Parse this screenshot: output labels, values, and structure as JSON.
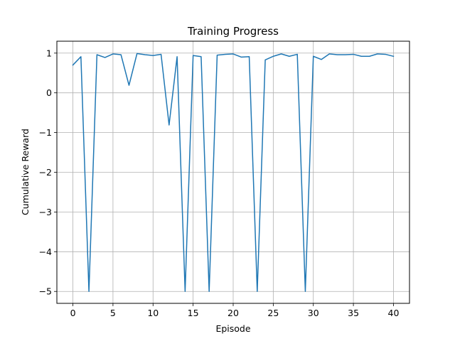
{
  "chart_data": {
    "type": "line",
    "title": "Training Progress",
    "xlabel": "Episode",
    "ylabel": "Cumulative Reward",
    "xlim": [
      -2,
      42
    ],
    "ylim": [
      -5.3,
      1.3
    ],
    "grid": true,
    "legend": "none",
    "colors": {
      "series": "#1f77b4",
      "grid": "#b0b0b0",
      "axis": "#000000"
    },
    "x_ticks": [
      0,
      5,
      10,
      15,
      20,
      25,
      30,
      35,
      40
    ],
    "y_ticks": [
      1,
      0,
      -1,
      -2,
      -3,
      -4,
      -5
    ],
    "x_tick_labels": [
      "0",
      "5",
      "10",
      "15",
      "20",
      "25",
      "30",
      "35",
      "40"
    ],
    "y_tick_labels": [
      "1",
      "0",
      "−1",
      "−2",
      "−3",
      "−4",
      "−5"
    ],
    "series": [
      {
        "x": [
          0,
          1,
          2,
          3,
          4,
          5,
          6,
          7,
          8,
          9,
          10,
          11,
          12,
          13,
          14,
          15,
          16,
          17,
          18,
          19,
          20,
          21,
          22,
          23,
          24,
          25,
          26,
          27,
          28,
          29,
          30,
          31,
          32,
          33,
          34,
          35,
          36,
          37,
          38,
          39,
          40
        ],
        "values": [
          0.7,
          0.91,
          -5,
          0.96,
          0.89,
          0.98,
          0.96,
          0.19,
          0.99,
          0.96,
          0.94,
          0.97,
          -0.81,
          0.91,
          -5,
          0.94,
          0.91,
          -5,
          0.95,
          0.97,
          0.98,
          0.9,
          0.91,
          -5,
          0.83,
          0.92,
          0.98,
          0.92,
          0.97,
          -5,
          0.92,
          0.84,
          0.98,
          0.96,
          0.96,
          0.97,
          0.92,
          0.92,
          0.98,
          0.97,
          0.92
        ]
      }
    ]
  }
}
